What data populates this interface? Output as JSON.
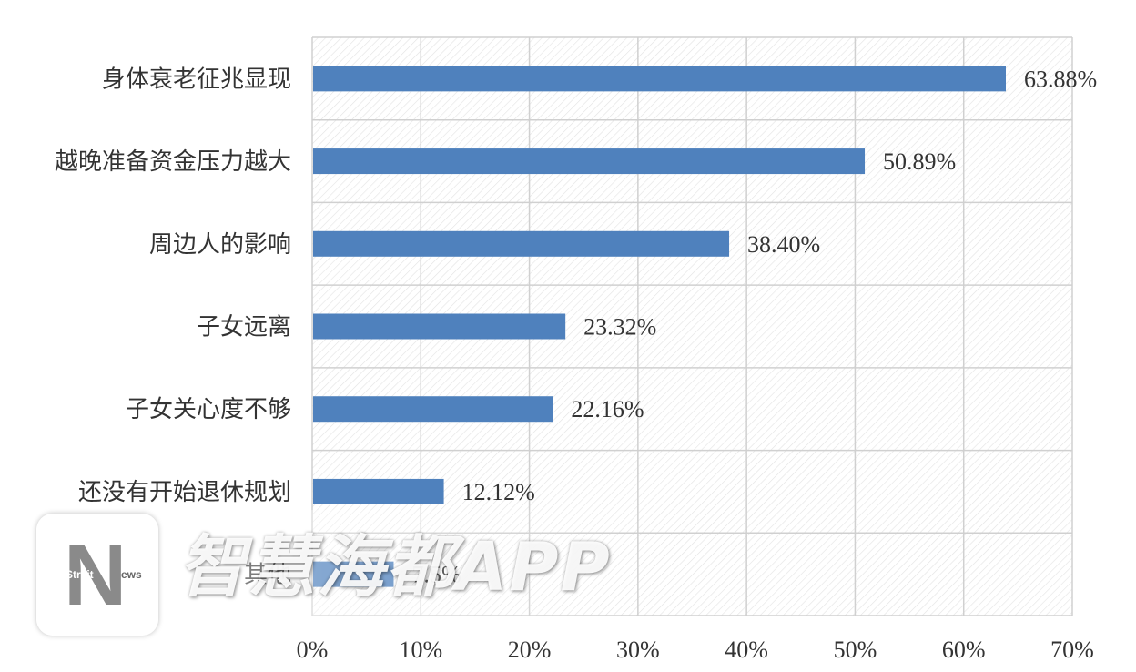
{
  "chart_data": {
    "type": "bar",
    "orientation": "horizontal",
    "categories": [
      "身体衰老征兆显现",
      "越晚准备资金压力越大",
      "周边人的影响",
      "子女远离",
      "子女关心度不够",
      "还没有开始退休规划",
      "其他"
    ],
    "values": [
      63.88,
      50.89,
      38.4,
      23.32,
      22.16,
      12.12,
      7.5
    ],
    "data_labels": [
      "63.88%",
      "50.89%",
      "38.40%",
      "23.32%",
      "22.16%",
      "12.12%",
      "7.5%"
    ],
    "xlim": [
      0,
      70
    ],
    "x_ticks": [
      0,
      10,
      20,
      30,
      40,
      50,
      60,
      70
    ],
    "x_tick_labels": [
      "0%",
      "10%",
      "20%",
      "30%",
      "40%",
      "50%",
      "60%",
      "70%"
    ],
    "grid": true,
    "bar_color": "#4f81bd",
    "gridline_color": "#d0d0d0"
  },
  "watermark": {
    "text": "智慧海都APP",
    "logo_strait": "Strait",
    "logo_n": "N",
    "logo_news": "ews"
  }
}
